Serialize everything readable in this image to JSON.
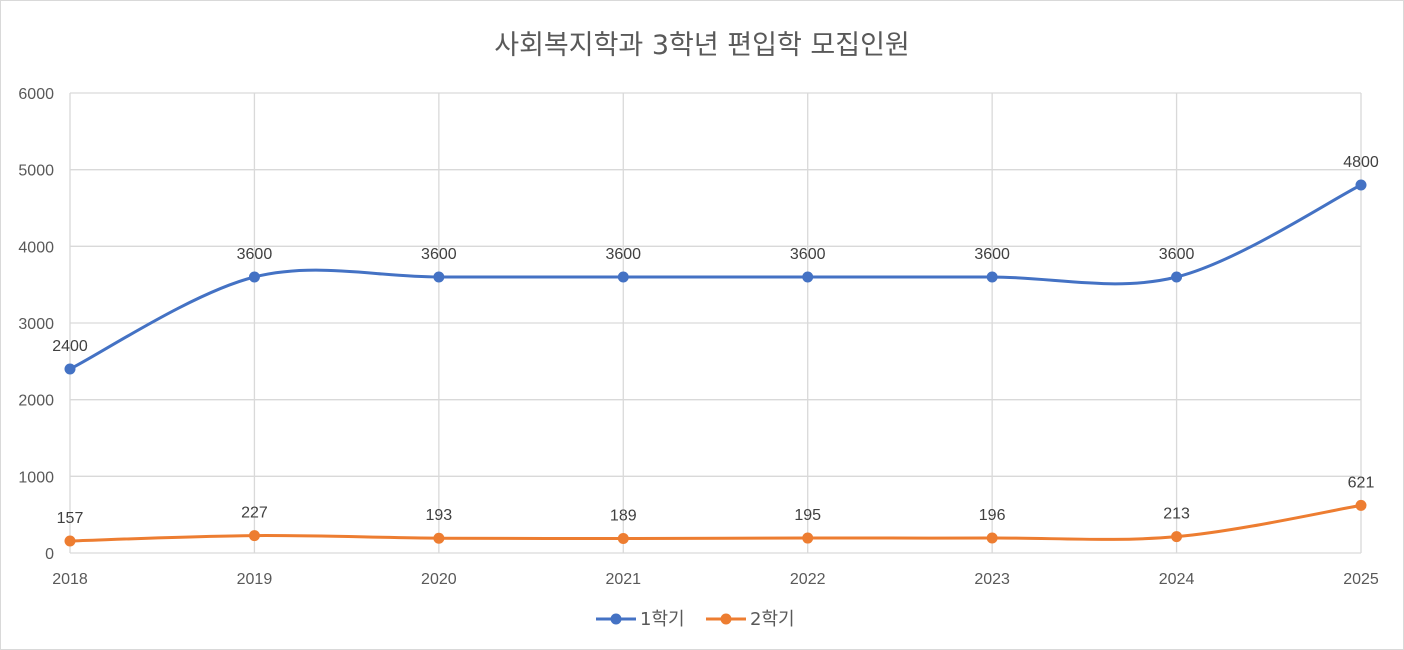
{
  "chart_data": {
    "type": "line",
    "title": "사회복지학과 3학년 편입학 모집인원",
    "categories": [
      "2018",
      "2019",
      "2020",
      "2021",
      "2022",
      "2023",
      "2024",
      "2025"
    ],
    "series": [
      {
        "name": "1학기",
        "color": "#4472C4",
        "values": [
          2400,
          3600,
          3600,
          3600,
          3600,
          3600,
          3600,
          4800
        ]
      },
      {
        "name": "2학기",
        "color": "#ED7D31",
        "values": [
          157,
          227,
          193,
          189,
          195,
          196,
          213,
          621
        ]
      }
    ],
    "ylim": [
      0,
      6000
    ],
    "yticks": [
      0,
      1000,
      2000,
      3000,
      4000,
      5000,
      6000
    ],
    "xlabel": "",
    "ylabel": "",
    "grid": true,
    "smooth": true,
    "data_labels": true,
    "legend_position": "bottom"
  }
}
